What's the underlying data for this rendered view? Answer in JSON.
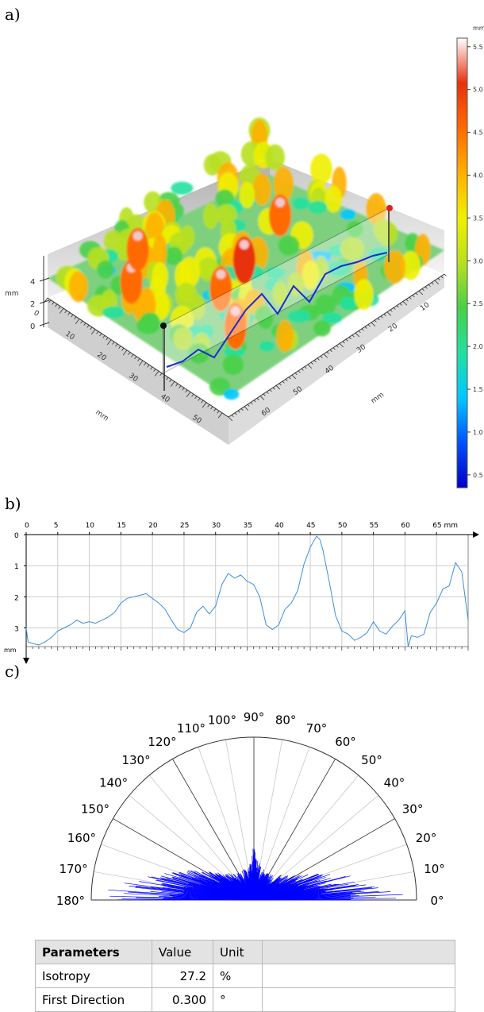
{
  "labels": {
    "a": "a)",
    "b": "b)",
    "c": "c)"
  },
  "chart_data": [
    {
      "type": "surface",
      "x_unit": "mm",
      "y_unit": "mm",
      "z_unit": "mm",
      "x_ticks": [
        "0",
        "10",
        "20",
        "30",
        "40",
        "50"
      ],
      "y_ticks": [
        "10",
        "20",
        "30",
        "40",
        "50",
        "60"
      ],
      "z_ticks": [
        "0",
        "2",
        "4"
      ],
      "colorbar": {
        "unit": "mm",
        "ticks": [
          "5.5",
          "5.0",
          "4.5",
          "4.0",
          "3.5",
          "3.0",
          "2.5",
          "2.0",
          "1.5",
          "1.0",
          "0.5"
        ],
        "range": [
          0.35,
          5.6
        ],
        "colors": [
          "#0000c8",
          "#0050ff",
          "#00c8ff",
          "#22e0a0",
          "#48d048",
          "#b8e020",
          "#f0f000",
          "#ffb000",
          "#ff6a00",
          "#e83010",
          "#ffffff"
        ]
      }
    },
    {
      "type": "line",
      "x_unit": "mm",
      "y_unit": "mm",
      "xlim": [
        0,
        70
      ],
      "ylim": [
        0,
        3.6
      ],
      "x_ticks": [
        "0",
        "5",
        "10",
        "15",
        "20",
        "25",
        "30",
        "35",
        "40",
        "45",
        "50",
        "55",
        "60",
        "65 mm"
      ],
      "y_ticks": [
        "0",
        "1",
        "2",
        "3"
      ],
      "y_axis_label": "mm",
      "color": "#3a8fe0",
      "x": [
        0,
        0.3,
        1,
        2,
        3,
        4,
        5,
        6,
        7,
        8,
        9,
        10,
        11,
        12,
        13,
        14,
        15,
        16,
        17,
        18,
        19,
        20,
        21,
        22,
        23,
        24,
        25,
        26,
        27,
        28,
        29,
        30,
        31,
        32,
        33,
        34,
        35,
        36,
        37,
        38,
        39,
        40,
        41,
        42,
        43,
        44,
        45,
        46,
        46.5,
        47,
        48,
        49,
        50,
        51,
        52,
        53,
        54,
        55,
        56,
        57,
        58,
        59,
        60,
        60.5,
        61,
        62,
        63,
        64,
        65,
        66,
        67,
        68,
        69,
        70
      ],
      "y": [
        3.0,
        3.45,
        3.5,
        3.55,
        3.45,
        3.3,
        3.1,
        3.0,
        2.9,
        2.75,
        2.85,
        2.8,
        2.85,
        2.75,
        2.65,
        2.5,
        2.2,
        2.05,
        2.0,
        1.95,
        1.9,
        2.05,
        2.2,
        2.4,
        2.75,
        3.05,
        3.15,
        3.0,
        2.5,
        2.3,
        2.55,
        2.3,
        1.6,
        1.25,
        1.4,
        1.3,
        1.5,
        1.6,
        2.0,
        2.9,
        3.05,
        2.9,
        2.4,
        2.2,
        1.8,
        0.95,
        0.4,
        0.05,
        0.15,
        0.5,
        1.5,
        2.6,
        3.1,
        3.2,
        3.4,
        3.3,
        3.15,
        2.8,
        3.1,
        3.2,
        2.95,
        2.75,
        2.45,
        3.6,
        3.25,
        3.3,
        3.2,
        2.5,
        2.2,
        1.75,
        1.65,
        0.9,
        1.2,
        2.75
      ]
    },
    {
      "type": "polar_rose",
      "angle_range": [
        0,
        180
      ],
      "angle_ticks": [
        "0°",
        "10°",
        "20°",
        "30°",
        "40°",
        "50°",
        "60°",
        "70°",
        "80°",
        "90°",
        "100°",
        "110°",
        "120°",
        "130°",
        "140°",
        "150°",
        "160°",
        "170°",
        "180°"
      ],
      "color": "#0000ff",
      "angles_deg": [
        0,
        1,
        2,
        3,
        4,
        5,
        6,
        7,
        8,
        9,
        10,
        12,
        14,
        16,
        18,
        20,
        23,
        26,
        30,
        34,
        38,
        42,
        46,
        50,
        55,
        60,
        65,
        70,
        75,
        80,
        85,
        90,
        95,
        100,
        105,
        110,
        115,
        120,
        125,
        130,
        134,
        138,
        142,
        146,
        150,
        154,
        158,
        162,
        165,
        168,
        170,
        172,
        174,
        175,
        176,
        177,
        178,
        179,
        180
      ],
      "radius": [
        0.95,
        0.82,
        0.9,
        0.78,
        0.86,
        0.72,
        0.8,
        0.66,
        0.74,
        0.6,
        0.7,
        0.55,
        0.6,
        0.48,
        0.5,
        0.44,
        0.4,
        0.34,
        0.3,
        0.26,
        0.24,
        0.22,
        0.22,
        0.2,
        0.18,
        0.19,
        0.17,
        0.2,
        0.18,
        0.22,
        0.25,
        0.32,
        0.25,
        0.2,
        0.18,
        0.2,
        0.17,
        0.19,
        0.18,
        0.21,
        0.22,
        0.24,
        0.26,
        0.3,
        0.34,
        0.4,
        0.46,
        0.52,
        0.6,
        0.68,
        0.72,
        0.78,
        0.8,
        0.74,
        0.86,
        0.8,
        0.9,
        0.84,
        0.92
      ]
    }
  ],
  "table": {
    "headers": [
      "Parameters",
      "Value",
      "Unit"
    ],
    "rows": [
      {
        "name": "Isotropy",
        "value": "27.2",
        "unit": "%"
      },
      {
        "name": "First Direction",
        "value": "0.300",
        "unit": "°"
      }
    ]
  }
}
